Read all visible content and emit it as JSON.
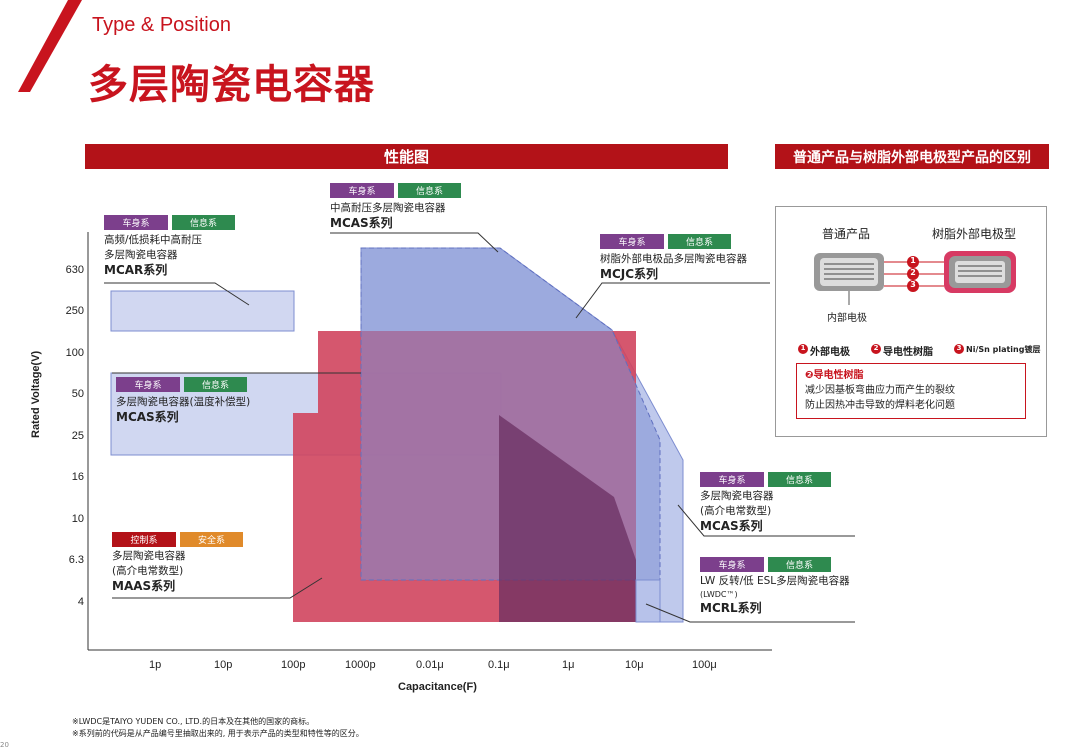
{
  "header": {
    "subtitle": "Type & Position",
    "title": "多层陶瓷电容器"
  },
  "chart_header": "性能图",
  "side_header": "普通产品与树脂外部电极型产品的区别",
  "chart_data": {
    "type": "area",
    "ylabel": "Rated Voltage(V)",
    "xlabel": "Capacitance(F)",
    "yticks": [
      "630",
      "250",
      "100",
      "50",
      "25",
      "16",
      "10",
      "6.3",
      "4"
    ],
    "xticks": [
      "1p",
      "10p",
      "100p",
      "1000p",
      "0.01μ",
      "0.1μ",
      "1μ",
      "10μ",
      "100μ"
    ],
    "regions": [
      {
        "name": "MCAR系列",
        "capacitance": [
          "0.3p",
          "200p"
        ],
        "voltage": [
          "200",
          "450"
        ]
      },
      {
        "name": "MCAS系列(温度补偿型)",
        "capacitance": [
          "0.3p",
          "0.1μ"
        ],
        "voltage": [
          "22",
          "70"
        ]
      },
      {
        "name": "MCAS系列(中高耐压)",
        "capacitance": [
          "1000p",
          "10μ"
        ],
        "voltage": [
          "5",
          "630"
        ]
      },
      {
        "name": "MCJC系列",
        "capacitance": [
          "1000p",
          "70μ"
        ],
        "voltage": [
          "5",
          "630"
        ]
      },
      {
        "name": "MAAS系列",
        "capacitance": [
          "100p",
          "10μ"
        ],
        "voltage": [
          "4",
          "150"
        ]
      },
      {
        "name": "MCRL系列",
        "capacitance": [
          "10μ",
          "22μ"
        ],
        "voltage": [
          "4",
          "6"
        ]
      }
    ]
  },
  "annotations": {
    "mcar": {
      "tag1": "车身系",
      "tag2": "信息系",
      "line1": "高频/低损耗中高耐压",
      "line2": "多层陶瓷电容器",
      "series": "MCAR系列"
    },
    "mcas_top": {
      "tag1": "车身系",
      "tag2": "信息系",
      "line1": "中高耐压多层陶瓷电容器",
      "series": "MCAS系列"
    },
    "mcjc": {
      "tag1": "车身系",
      "tag2": "信息系",
      "line1": "树脂外部电极品多层陶瓷电容器",
      "series": "MCJC系列"
    },
    "mcas_temp": {
      "tag1": "车身系",
      "tag2": "信息系",
      "line1": "多层陶瓷电容器(温度补偿型)",
      "series": "MCAS系列"
    },
    "mcas_right": {
      "tag1": "车身系",
      "tag2": "信息系",
      "line1": "多层陶瓷电容器",
      "line2": "(高介电常数型)",
      "series": "MCAS系列"
    },
    "maas": {
      "tag1": "控制系",
      "tag2": "安全系",
      "line1": "多层陶瓷电容器",
      "line2": "(高介电常数型)",
      "series": "MAAS系列"
    },
    "mcrl": {
      "tag1": "车身系",
      "tag2": "信息系",
      "line1": "LW 反转/低 ESL多层陶瓷电容器",
      "line2": "(LWDC™)",
      "series": "MCRL系列"
    }
  },
  "panel": {
    "normal": "普通产品",
    "resin": "树脂外部电极型",
    "inner_electrode": "内部电极",
    "n1": "1",
    "n2": "2",
    "n3": "3",
    "legend1": "外部电极",
    "legend2": "导电性树脂",
    "legend3": "Ni/Sn plating镀层",
    "box_title": "❷导电性树脂",
    "box_line1": "减少因基板弯曲应力而产生的裂纹",
    "box_line2": "防止因热冲击导致的焊料老化问题"
  },
  "footnotes": [
    "※LWDC是TAIYO YUDEN CO., LTD.的日本及在其他的国家的商标。",
    "※系列前的代码是从产品编号里抽取出来的, 用于表示产品的类型和特性等的区分。"
  ],
  "page_number": "20",
  "colors": {
    "brand_red": "#b31218",
    "blue_fill": "#8f9ed8",
    "red_fill": "#c8374f",
    "dark_fill": "#7d3a62"
  }
}
